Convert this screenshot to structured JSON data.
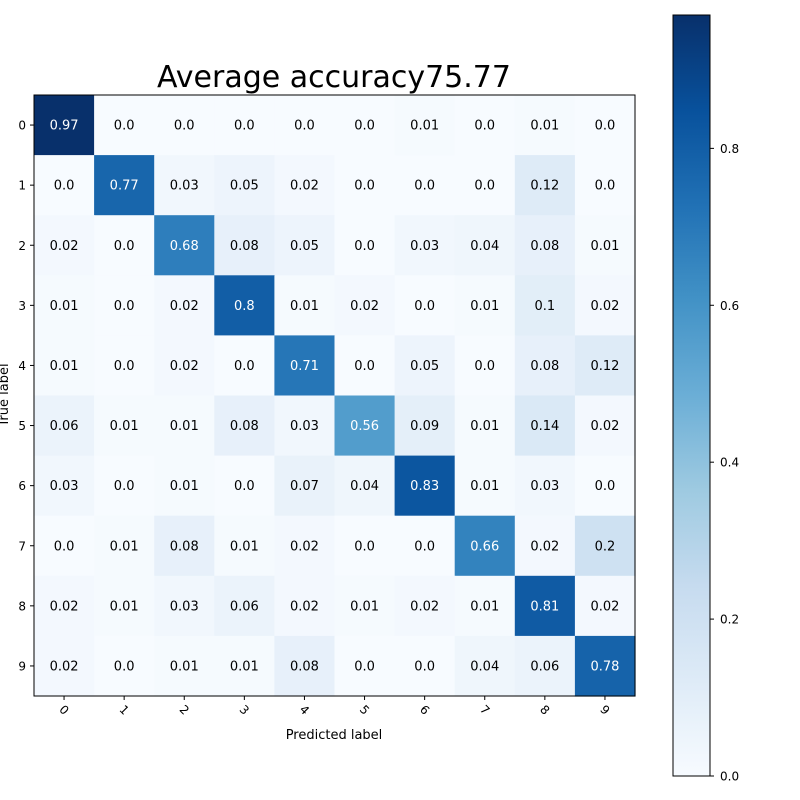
{
  "chart_data": {
    "type": "heatmap",
    "title": "Average accuracy75.77",
    "xlabel": "Predicted label",
    "ylabel": "True label",
    "x_categories": [
      "0",
      "1",
      "2",
      "3",
      "4",
      "5",
      "6",
      "7",
      "8",
      "9"
    ],
    "y_categories": [
      "0",
      "1",
      "2",
      "3",
      "4",
      "5",
      "6",
      "7",
      "8",
      "9"
    ],
    "values": [
      [
        0.97,
        0.0,
        0.0,
        0.0,
        0.0,
        0.0,
        0.01,
        0.0,
        0.01,
        0.0
      ],
      [
        0.0,
        0.77,
        0.03,
        0.05,
        0.02,
        0.0,
        0.0,
        0.0,
        0.12,
        0.0
      ],
      [
        0.02,
        0.0,
        0.68,
        0.08,
        0.05,
        0.0,
        0.03,
        0.04,
        0.08,
        0.01
      ],
      [
        0.01,
        0.0,
        0.02,
        0.8,
        0.01,
        0.02,
        0.0,
        0.01,
        0.1,
        0.02
      ],
      [
        0.01,
        0.0,
        0.02,
        0.0,
        0.71,
        0.0,
        0.05,
        0.0,
        0.08,
        0.12
      ],
      [
        0.06,
        0.01,
        0.01,
        0.08,
        0.03,
        0.56,
        0.09,
        0.01,
        0.14,
        0.02
      ],
      [
        0.03,
        0.0,
        0.01,
        0.0,
        0.07,
        0.04,
        0.83,
        0.01,
        0.03,
        0.0
      ],
      [
        0.0,
        0.01,
        0.08,
        0.01,
        0.02,
        0.0,
        0.0,
        0.66,
        0.02,
        0.2
      ],
      [
        0.02,
        0.01,
        0.03,
        0.06,
        0.02,
        0.01,
        0.02,
        0.01,
        0.81,
        0.02
      ],
      [
        0.02,
        0.0,
        0.01,
        0.01,
        0.08,
        0.0,
        0.0,
        0.04,
        0.06,
        0.78
      ]
    ],
    "value_labels": [
      [
        "0.97",
        "0.0",
        "0.0",
        "0.0",
        "0.0",
        "0.0",
        "0.01",
        "0.0",
        "0.01",
        "0.0"
      ],
      [
        "0.0",
        "0.77",
        "0.03",
        "0.05",
        "0.02",
        "0.0",
        "0.0",
        "0.0",
        "0.12",
        "0.0"
      ],
      [
        "0.02",
        "0.0",
        "0.68",
        "0.08",
        "0.05",
        "0.0",
        "0.03",
        "0.04",
        "0.08",
        "0.01"
      ],
      [
        "0.01",
        "0.0",
        "0.02",
        "0.8",
        "0.01",
        "0.02",
        "0.0",
        "0.01",
        "0.1",
        "0.02"
      ],
      [
        "0.01",
        "0.0",
        "0.02",
        "0.0",
        "0.71",
        "0.0",
        "0.05",
        "0.0",
        "0.08",
        "0.12"
      ],
      [
        "0.06",
        "0.01",
        "0.01",
        "0.08",
        "0.03",
        "0.56",
        "0.09",
        "0.01",
        "0.14",
        "0.02"
      ],
      [
        "0.03",
        "0.0",
        "0.01",
        "0.0",
        "0.07",
        "0.04",
        "0.83",
        "0.01",
        "0.03",
        "0.0"
      ],
      [
        "0.0",
        "0.01",
        "0.08",
        "0.01",
        "0.02",
        "0.0",
        "0.0",
        "0.66",
        "0.02",
        "0.2"
      ],
      [
        "0.02",
        "0.01",
        "0.03",
        "0.06",
        "0.02",
        "0.01",
        "0.02",
        "0.01",
        "0.81",
        "0.02"
      ],
      [
        "0.02",
        "0.0",
        "0.01",
        "0.01",
        "0.08",
        "0.0",
        "0.0",
        "0.04",
        "0.06",
        "0.78"
      ]
    ],
    "colormap": "Blues",
    "colorbar": {
      "range": [
        0.0,
        0.97
      ],
      "ticks": [
        0.0,
        0.2,
        0.4,
        0.6,
        0.8
      ],
      "tick_labels": [
        "0.0",
        "0.2",
        "0.4",
        "0.6",
        "0.8"
      ]
    },
    "grid": false,
    "legend": "none"
  }
}
